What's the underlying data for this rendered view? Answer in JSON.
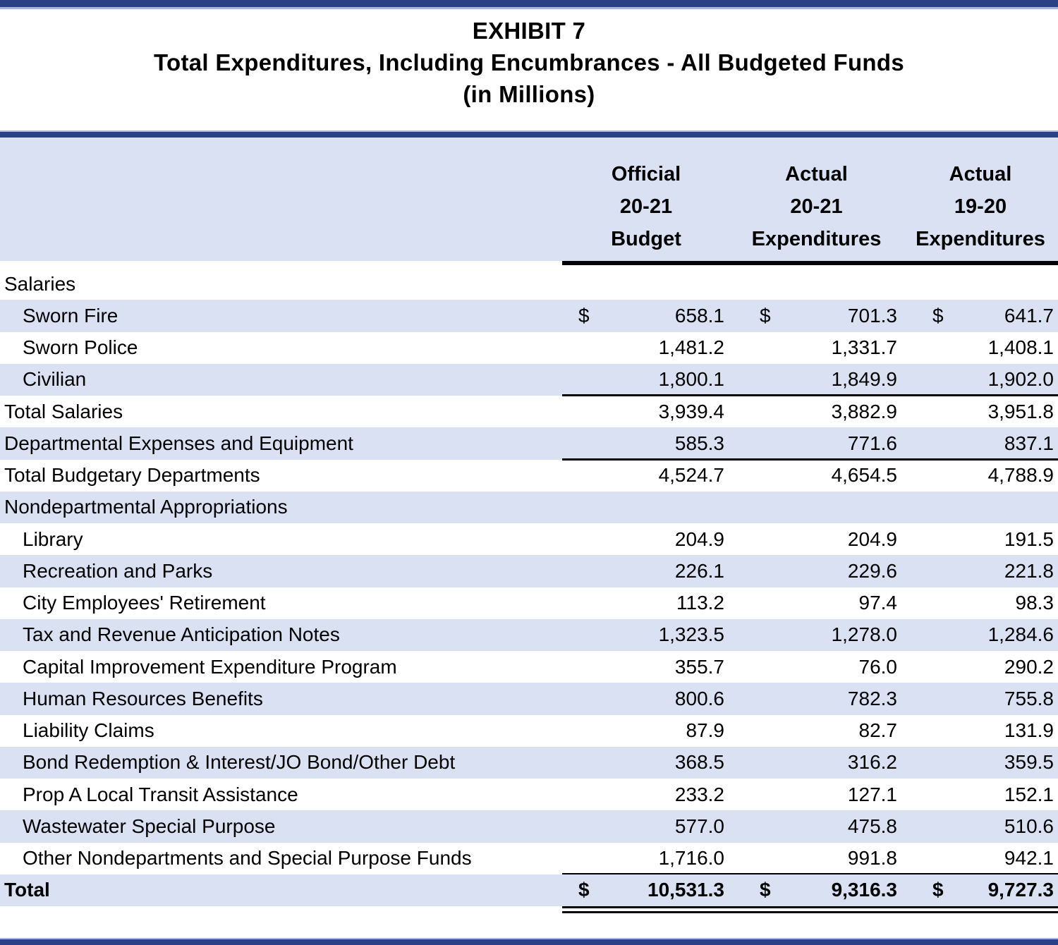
{
  "title": {
    "exhibit": "EXHIBIT 7",
    "main": "Total Expenditures, Including Encumbrances - All Budgeted Funds",
    "units": "(in Millions)"
  },
  "colors": {
    "navy_bar": "#2a4186",
    "light_bar": "#a9b7e0",
    "row_shade": "#d9e1f3",
    "text": "#000000"
  },
  "table": {
    "currency_symbol": "$",
    "columns": [
      {
        "lines": [
          "Official",
          "20-21",
          "Budget"
        ]
      },
      {
        "lines": [
          "Actual",
          "20-21",
          "Expenditures"
        ]
      },
      {
        "lines": [
          "Actual",
          "19-20",
          "Expenditures"
        ]
      }
    ],
    "rows": [
      {
        "label": "Salaries",
        "indent": false,
        "bold": false,
        "shaded": false,
        "dollar": false,
        "values": [
          "",
          "",
          ""
        ],
        "rule": "none"
      },
      {
        "label": "Sworn Fire",
        "indent": true,
        "bold": false,
        "shaded": true,
        "dollar": true,
        "values": [
          "658.1",
          "701.3",
          "641.7"
        ],
        "rule": "none"
      },
      {
        "label": "Sworn Police",
        "indent": true,
        "bold": false,
        "shaded": false,
        "dollar": false,
        "values": [
          "1,481.2",
          "1,331.7",
          "1,408.1"
        ],
        "rule": "none"
      },
      {
        "label": "Civilian",
        "indent": true,
        "bold": false,
        "shaded": true,
        "dollar": false,
        "values": [
          "1,800.1",
          "1,849.9",
          "1,902.0"
        ],
        "rule": "single"
      },
      {
        "label": "Total Salaries",
        "indent": false,
        "bold": false,
        "shaded": false,
        "dollar": false,
        "values": [
          "3,939.4",
          "3,882.9",
          "3,951.8"
        ],
        "rule": "none"
      },
      {
        "label": "Departmental Expenses and Equipment",
        "indent": false,
        "bold": false,
        "shaded": true,
        "dollar": false,
        "values": [
          "585.3",
          "771.6",
          "837.1"
        ],
        "rule": "single"
      },
      {
        "label": "Total Budgetary Departments",
        "indent": false,
        "bold": false,
        "shaded": false,
        "dollar": false,
        "values": [
          "4,524.7",
          "4,654.5",
          "4,788.9"
        ],
        "rule": "none"
      },
      {
        "label": "Nondepartmental Appropriations",
        "indent": false,
        "bold": false,
        "shaded": true,
        "dollar": false,
        "values": [
          "",
          "",
          ""
        ],
        "rule": "none"
      },
      {
        "label": "Library",
        "indent": true,
        "bold": false,
        "shaded": false,
        "dollar": false,
        "values": [
          "204.9",
          "204.9",
          "191.5"
        ],
        "rule": "none"
      },
      {
        "label": "Recreation and Parks",
        "indent": true,
        "bold": false,
        "shaded": true,
        "dollar": false,
        "values": [
          "226.1",
          "229.6",
          "221.8"
        ],
        "rule": "none"
      },
      {
        "label": "City Employees' Retirement",
        "indent": true,
        "bold": false,
        "shaded": false,
        "dollar": false,
        "values": [
          "113.2",
          "97.4",
          "98.3"
        ],
        "rule": "none"
      },
      {
        "label": "Tax and Revenue Anticipation Notes",
        "indent": true,
        "bold": false,
        "shaded": true,
        "dollar": false,
        "values": [
          "1,323.5",
          "1,278.0",
          "1,284.6"
        ],
        "rule": "none"
      },
      {
        "label": "Capital Improvement Expenditure Program",
        "indent": true,
        "bold": false,
        "shaded": false,
        "dollar": false,
        "values": [
          "355.7",
          "76.0",
          "290.2"
        ],
        "rule": "none"
      },
      {
        "label": "Human Resources Benefits",
        "indent": true,
        "bold": false,
        "shaded": true,
        "dollar": false,
        "values": [
          "800.6",
          "782.3",
          "755.8"
        ],
        "rule": "none"
      },
      {
        "label": "Liability Claims",
        "indent": true,
        "bold": false,
        "shaded": false,
        "dollar": false,
        "values": [
          "87.9",
          "82.7",
          "131.9"
        ],
        "rule": "none"
      },
      {
        "label": "Bond Redemption & Interest/JO Bond/Other Debt",
        "indent": true,
        "bold": false,
        "shaded": true,
        "dollar": false,
        "values": [
          "368.5",
          "316.2",
          "359.5"
        ],
        "rule": "none"
      },
      {
        "label": "Prop A Local Transit Assistance",
        "indent": true,
        "bold": false,
        "shaded": false,
        "dollar": false,
        "values": [
          "233.2",
          "127.1",
          "152.1"
        ],
        "rule": "none"
      },
      {
        "label": "Wastewater Special Purpose",
        "indent": true,
        "bold": false,
        "shaded": true,
        "dollar": false,
        "values": [
          "577.0",
          "475.8",
          "510.6"
        ],
        "rule": "none"
      },
      {
        "label": "Other Nondepartments and Special Purpose Funds",
        "indent": true,
        "bold": false,
        "shaded": false,
        "dollar": false,
        "values": [
          "1,716.0",
          "991.8",
          "942.1"
        ],
        "rule": "single"
      },
      {
        "label": "Total",
        "indent": false,
        "bold": true,
        "shaded": true,
        "dollar": true,
        "values": [
          "10,531.3",
          "9,316.3",
          "9,727.3"
        ],
        "rule": "double"
      }
    ]
  }
}
